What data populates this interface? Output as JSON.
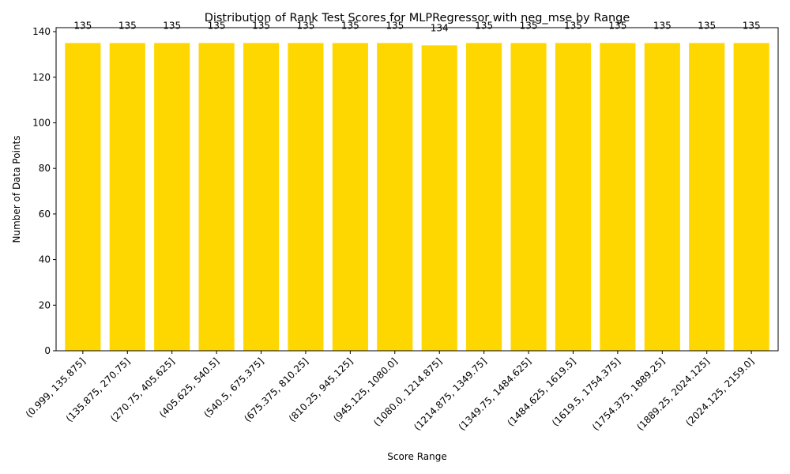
{
  "chart_data": {
    "type": "bar",
    "title": "Distribution of Rank Test Scores for MLPRegressor with neg_mse by Range",
    "xlabel": "Score Range",
    "ylabel": "Number of Data Points",
    "categories": [
      "(0.999, 135.875]",
      "(135.875, 270.75]",
      "(270.75, 405.625]",
      "(405.625, 540.5]",
      "(540.5, 675.375]",
      "(675.375, 810.25]",
      "(810.25, 945.125]",
      "(945.125, 1080.0]",
      "(1080.0, 1214.875]",
      "(1214.875, 1349.75]",
      "(1349.75, 1484.625]",
      "(1484.625, 1619.5]",
      "(1619.5, 1754.375]",
      "(1754.375, 1889.25]",
      "(1889.25, 2024.125]",
      "(2024.125, 2159.0]"
    ],
    "values": [
      135,
      135,
      135,
      135,
      135,
      135,
      135,
      135,
      134,
      135,
      135,
      135,
      135,
      135,
      135,
      135
    ],
    "data_labels": [
      "135",
      "135",
      "135",
      "135",
      "135",
      "135",
      "135",
      "135",
      "134",
      "135",
      "135",
      "135",
      "135",
      "135",
      "135",
      "135"
    ],
    "ylim": [
      0,
      141.75
    ],
    "yticks": [
      0,
      20,
      40,
      60,
      80,
      100,
      120,
      140
    ],
    "bar_color": "#FFD700",
    "grid": false,
    "legend": "none"
  }
}
